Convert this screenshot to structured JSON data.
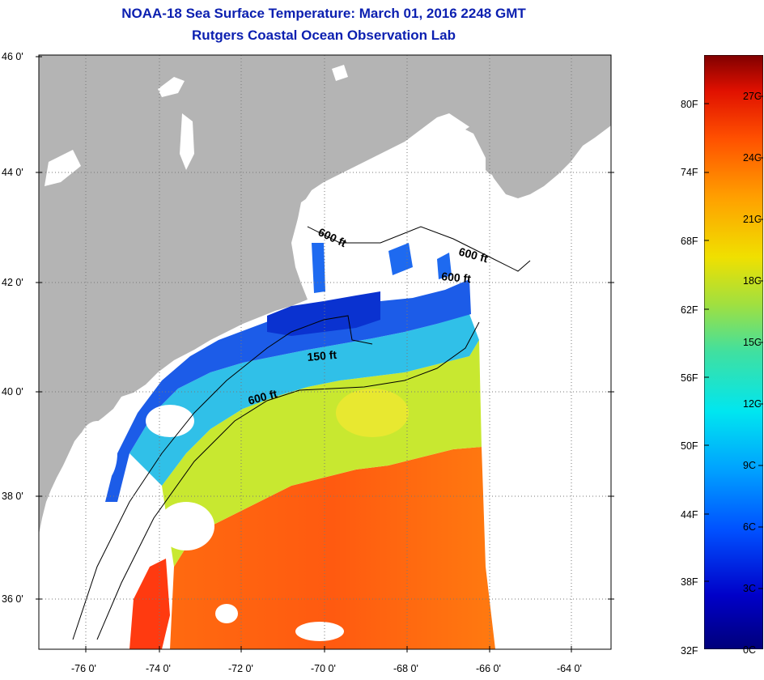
{
  "header": {
    "title": "NOAA-18 Sea Surface Temperature:  March 01, 2016 2248 GMT",
    "subtitle": "Rutgers Coastal Ocean Observation Lab"
  },
  "map": {
    "lat_labels": [
      "46 0'",
      "44 0'",
      "42 0'",
      "40 0'",
      "38 0'",
      "36 0'"
    ],
    "lon_labels": [
      "-76 0'",
      "-74 0'",
      "-72 0'",
      "-70 0'",
      "-68 0'",
      "-66 0'",
      "-64 0'"
    ],
    "isobath_labels": [
      "600 ft",
      "600 ft",
      "600 ft",
      "150 ft",
      "600 ft"
    ],
    "land_color": "#b4b4b4",
    "cloud_color": "#ffffff"
  },
  "colorbar": {
    "fahrenheit_labels": [
      "80F",
      "74F",
      "68F",
      "62F",
      "56F",
      "50F",
      "44F",
      "38F",
      "32F"
    ],
    "celsius_labels": [
      "27C",
      "24C",
      "21C",
      "18C",
      "15C",
      "12C",
      "9C",
      "6C",
      "3C",
      "0C"
    ],
    "range_celsius": [
      0,
      29
    ],
    "gradient_colors": [
      "#00007a",
      "#0000c8",
      "#0050ff",
      "#00a0ff",
      "#00e6f0",
      "#40e0a0",
      "#a0e040",
      "#f0e000",
      "#ffa000",
      "#ff5000",
      "#e01000",
      "#800000"
    ]
  }
}
